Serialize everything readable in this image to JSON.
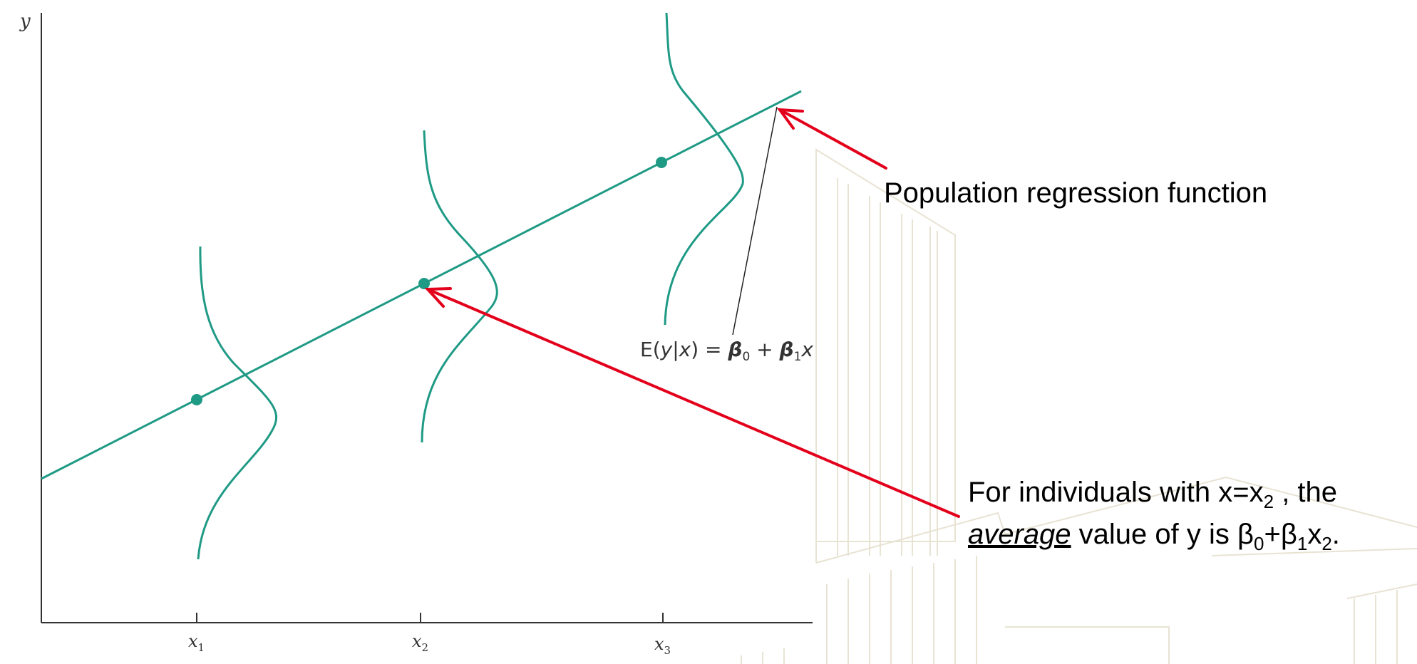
{
  "axes": {
    "y_label": "y",
    "x_ticks": [
      {
        "base": "x",
        "sub": "1"
      },
      {
        "base": "x",
        "sub": "2"
      },
      {
        "base": "x",
        "sub": "3"
      }
    ]
  },
  "regression": {
    "formula": {
      "lhs": "E(",
      "y": "y",
      "bar": "|",
      "x": "x",
      "close_eq": ") = ",
      "beta0": "β",
      "beta0_sub": "0",
      "plus": " + ",
      "beta1": "β",
      "beta1_sub": "1",
      "x_end": "x"
    }
  },
  "annotations": {
    "prf_label": "Population regression function",
    "avg_line1_pre": "For individuals with x=x",
    "avg_line1_sub": "2",
    "avg_line1_post": " , the",
    "avg_line2_emph": "average",
    "avg_line2_mid": " value of  y is β",
    "avg_sub0": "0",
    "avg_plus": "+β",
    "avg_sub1": "1",
    "avg_x": "x",
    "avg_sub2": "2",
    "avg_end": "."
  },
  "colors": {
    "curve": "#1f9a85",
    "arrow": "#e3001b",
    "axis": "#333333",
    "watermark": "#e8e3d3"
  }
}
